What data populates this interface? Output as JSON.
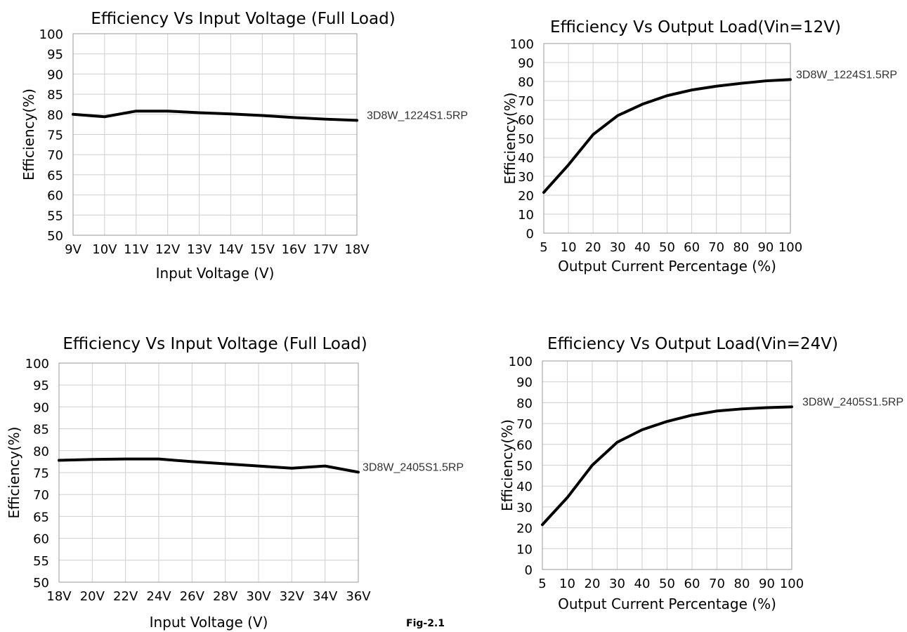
{
  "caption": "Fig-2.1",
  "chart_data": [
    {
      "type": "line",
      "title": "Efficiency Vs Input Voltage (Full Load)",
      "xlabel": "Input Voltage (V)",
      "ylabel": "Efficiency(%)",
      "categories": [
        "9V",
        "10V",
        "11V",
        "12V",
        "13V",
        "14V",
        "15V",
        "16V",
        "17V",
        "18V"
      ],
      "ylim": [
        50,
        100
      ],
      "yticks": [
        "100",
        "95",
        "90",
        "85",
        "80",
        "75",
        "70",
        "65",
        "60",
        "55",
        "50"
      ],
      "series": [
        {
          "name": "3D8W_1224S1.5RP",
          "values": [
            80.0,
            79.4,
            80.8,
            80.8,
            80.4,
            80.1,
            79.7,
            79.2,
            78.8,
            78.5
          ]
        }
      ],
      "grid": true
    },
    {
      "type": "line",
      "title": "Efficiency Vs Output Load(Vin=12V)",
      "xlabel": "Output Current Percentage (%)",
      "ylabel": "Efficiency(%)",
      "categories": [
        "5",
        "10",
        "20",
        "30",
        "40",
        "50",
        "60",
        "70",
        "80",
        "90",
        "100"
      ],
      "ylim": [
        0,
        100
      ],
      "yticks": [
        "100",
        "90",
        "80",
        "70",
        "60",
        "50",
        "40",
        "30",
        "20",
        "10",
        "0"
      ],
      "series": [
        {
          "name": "3D8W_1224S1.5RP",
          "values": [
            21.5,
            36,
            52,
            62,
            68,
            72.5,
            75.5,
            77.5,
            79,
            80.3,
            81
          ]
        }
      ],
      "grid": true
    },
    {
      "type": "line",
      "title": "Efficiency Vs Input Voltage (Full Load)",
      "xlabel": "Input Voltage (V)",
      "ylabel": "Efficiency(%)",
      "categories": [
        "18V",
        "20V",
        "22V",
        "24V",
        "26V",
        "28V",
        "30V",
        "32V",
        "34V",
        "36V"
      ],
      "ylim": [
        50,
        100
      ],
      "yticks": [
        "100",
        "95",
        "90",
        "85",
        "80",
        "75",
        "70",
        "65",
        "60",
        "55",
        "50"
      ],
      "series": [
        {
          "name": "3D8W_2405S1.5RP",
          "values": [
            77.8,
            78.0,
            78.1,
            78.1,
            77.5,
            77.0,
            76.5,
            76.0,
            76.5,
            75.1
          ]
        }
      ],
      "grid": true
    },
    {
      "type": "line",
      "title": "Efficiency Vs Output Load(Vin=24V)",
      "xlabel": "Output Current Percentage (%)",
      "ylabel": "Efficiency(%)",
      "categories": [
        "5",
        "10",
        "20",
        "30",
        "40",
        "50",
        "60",
        "70",
        "80",
        "90",
        "100"
      ],
      "ylim": [
        0,
        100
      ],
      "yticks": [
        "100",
        "90",
        "80",
        "70",
        "60",
        "50",
        "40",
        "30",
        "20",
        "10",
        "0"
      ],
      "series": [
        {
          "name": "3D8W_2405S1.5RP",
          "values": [
            21.5,
            34.5,
            50,
            61,
            67,
            71,
            74,
            76,
            77,
            77.6,
            78
          ]
        }
      ],
      "grid": true
    }
  ]
}
